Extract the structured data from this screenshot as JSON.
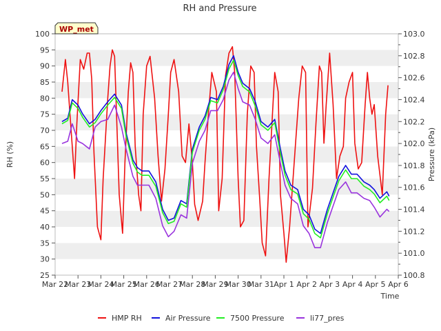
{
  "chart_data": {
    "type": "line",
    "title": "RH and Pressure",
    "site_badge": "WP_met",
    "xlabel": "Time",
    "ylabel_left": "RH (%)",
    "ylabel_right": "Pressure (kPa)",
    "x_ticks": [
      "Mar 22",
      "Mar 23",
      "Mar 24",
      "Mar 25",
      "Mar 26",
      "Mar 27",
      "Mar 28",
      "Mar 29",
      "Mar 30",
      "Mar 31",
      "Apr 1",
      "Apr 2",
      "Apr 3",
      "Apr 4",
      "Apr 5",
      "Apr 6"
    ],
    "x_range_days": [
      0,
      15
    ],
    "y_left_range": [
      25,
      100
    ],
    "y_left_ticks": [
      25,
      30,
      35,
      40,
      45,
      50,
      55,
      60,
      65,
      70,
      75,
      80,
      85,
      90,
      95,
      100
    ],
    "y_right_range": [
      100.8,
      103.0
    ],
    "y_right_ticks": [
      100.8,
      101.0,
      101.2,
      101.4,
      101.6,
      101.8,
      102.0,
      102.2,
      102.4,
      102.6,
      102.8,
      103.0
    ],
    "grid": "horizontal bands",
    "legend_position": "bottom",
    "series": [
      {
        "name": "HMP RH",
        "axis": "left",
        "color": "#ee1111",
        "x": [
          0.3,
          0.45,
          0.55,
          0.7,
          0.85,
          0.95,
          1.1,
          1.25,
          1.4,
          1.5,
          1.6,
          1.7,
          1.85,
          2.0,
          2.1,
          2.3,
          2.4,
          2.5,
          2.6,
          2.8,
          2.95,
          3.05,
          3.2,
          3.3,
          3.4,
          3.5,
          3.65,
          3.75,
          3.85,
          4.0,
          4.15,
          4.35,
          4.5,
          4.65,
          4.8,
          4.95,
          5.05,
          5.2,
          5.4,
          5.55,
          5.7,
          5.85,
          6.0,
          6.1,
          6.25,
          6.45,
          6.55,
          6.7,
          6.85,
          7.05,
          7.15,
          7.3,
          7.45,
          7.6,
          7.75,
          7.85,
          8.0,
          8.1,
          8.25,
          8.4,
          8.55,
          8.7,
          8.8,
          8.95,
          9.05,
          9.2,
          9.35,
          9.5,
          9.6,
          9.75,
          9.85,
          10.0,
          10.1,
          10.25,
          10.4,
          10.5,
          10.65,
          10.8,
          10.95,
          11.05,
          11.25,
          11.4,
          11.55,
          11.65,
          11.75,
          11.85,
          12.0,
          12.15,
          12.3,
          12.45,
          12.6,
          12.7,
          12.85,
          13.0,
          13.1,
          13.25,
          13.4,
          13.55,
          13.65,
          13.75,
          13.85,
          13.95,
          14.1,
          14.3,
          14.45,
          14.55
        ],
        "values": [
          82,
          92,
          85,
          70,
          55,
          72,
          92,
          89,
          94,
          94,
          86,
          63,
          40,
          36,
          55,
          80,
          90,
          95,
          93,
          50,
          38,
          60,
          82,
          91,
          88,
          65,
          50,
          45,
          75,
          90,
          93,
          80,
          62,
          48,
          58,
          75,
          88,
          92,
          82,
          62,
          60,
          72,
          60,
          47,
          42,
          48,
          60,
          75,
          88,
          82,
          45,
          55,
          87,
          94,
          96,
          88,
          55,
          40,
          42,
          75,
          90,
          88,
          65,
          48,
          35,
          31,
          55,
          75,
          88,
          82,
          50,
          38,
          29,
          40,
          55,
          65,
          80,
          90,
          88,
          40,
          52,
          72,
          90,
          88,
          66,
          78,
          94,
          78,
          55,
          62,
          65,
          80,
          85,
          88,
          66,
          58,
          60,
          78,
          88,
          80,
          75,
          78,
          62,
          50,
          75,
          84
        ]
      },
      {
        "name": "Air Pressure",
        "axis": "right",
        "color": "#1111dd",
        "x": [
          0.3,
          0.55,
          0.75,
          1.0,
          1.2,
          1.5,
          1.75,
          2.0,
          2.3,
          2.6,
          2.9,
          3.1,
          3.4,
          3.6,
          3.8,
          4.1,
          4.4,
          4.7,
          4.95,
          5.2,
          5.5,
          5.75,
          6.0,
          6.3,
          6.55,
          6.8,
          7.1,
          7.35,
          7.6,
          7.8,
          8.0,
          8.2,
          8.5,
          8.75,
          9.0,
          9.3,
          9.6,
          9.85,
          10.05,
          10.3,
          10.6,
          10.85,
          11.1,
          11.35,
          11.6,
          11.9,
          12.1,
          12.4,
          12.7,
          12.95,
          13.2,
          13.5,
          13.75,
          13.95,
          14.2,
          14.5,
          14.6
        ],
        "values": [
          102.2,
          102.23,
          102.4,
          102.35,
          102.27,
          102.18,
          102.22,
          102.3,
          102.38,
          102.45,
          102.35,
          102.1,
          101.85,
          101.78,
          101.75,
          101.75,
          101.65,
          101.4,
          101.3,
          101.32,
          101.48,
          101.45,
          101.95,
          102.15,
          102.25,
          102.42,
          102.4,
          102.52,
          102.72,
          102.8,
          102.65,
          102.55,
          102.5,
          102.38,
          102.2,
          102.15,
          102.22,
          101.95,
          101.75,
          101.62,
          101.58,
          101.4,
          101.35,
          101.22,
          101.18,
          101.4,
          101.52,
          101.7,
          101.8,
          101.72,
          101.72,
          101.65,
          101.62,
          101.58,
          101.5,
          101.56,
          101.52
        ]
      },
      {
        "name": "7500 Pressure",
        "axis": "right",
        "color": "#22ee22",
        "x": [
          0.3,
          0.55,
          0.75,
          1.0,
          1.2,
          1.5,
          1.75,
          2.0,
          2.3,
          2.6,
          2.9,
          3.1,
          3.4,
          3.6,
          3.8,
          4.1,
          4.4,
          4.7,
          4.95,
          5.2,
          5.5,
          5.75,
          6.0,
          6.3,
          6.55,
          6.8,
          7.1,
          7.35,
          7.6,
          7.8,
          8.0,
          8.2,
          8.5,
          8.75,
          9.0,
          9.3,
          9.6,
          9.85,
          10.05,
          10.3,
          10.6,
          10.85,
          11.1,
          11.35,
          11.6,
          11.9,
          12.1,
          12.4,
          12.7,
          12.95,
          13.2,
          13.5,
          13.75,
          13.95,
          14.2,
          14.5,
          14.6
        ],
        "values": [
          102.18,
          102.21,
          102.37,
          102.32,
          102.24,
          102.15,
          102.19,
          102.27,
          102.35,
          102.42,
          102.32,
          102.07,
          101.82,
          101.74,
          101.71,
          101.71,
          101.61,
          101.37,
          101.27,
          101.29,
          101.45,
          101.42,
          101.92,
          102.12,
          102.22,
          102.39,
          102.37,
          102.49,
          102.68,
          102.76,
          102.62,
          102.52,
          102.47,
          102.34,
          102.17,
          102.12,
          102.19,
          101.91,
          101.71,
          101.58,
          101.54,
          101.36,
          101.31,
          101.18,
          101.14,
          101.36,
          101.48,
          101.66,
          101.76,
          101.68,
          101.68,
          101.61,
          101.58,
          101.54,
          101.46,
          101.52,
          101.48
        ]
      },
      {
        "name": "li77_pres",
        "axis": "right",
        "color": "#9933dd",
        "x": [
          0.3,
          0.55,
          0.75,
          1.0,
          1.2,
          1.5,
          1.75,
          2.0,
          2.3,
          2.6,
          2.9,
          3.1,
          3.4,
          3.6,
          3.8,
          4.1,
          4.4,
          4.7,
          4.95,
          5.2,
          5.5,
          5.75,
          6.0,
          6.3,
          6.55,
          6.8,
          7.1,
          7.35,
          7.6,
          7.8,
          8.0,
          8.2,
          8.5,
          8.75,
          9.0,
          9.3,
          9.6,
          9.85,
          10.05,
          10.3,
          10.6,
          10.85,
          11.1,
          11.35,
          11.6,
          11.9,
          12.1,
          12.4,
          12.7,
          12.95,
          13.2,
          13.5,
          13.75,
          13.95,
          14.2,
          14.5,
          14.6
        ],
        "values": [
          102.0,
          102.02,
          102.18,
          102.02,
          102.0,
          101.95,
          102.15,
          102.2,
          102.22,
          102.35,
          102.15,
          101.95,
          101.7,
          101.62,
          101.62,
          101.62,
          101.5,
          101.25,
          101.15,
          101.2,
          101.35,
          101.32,
          101.82,
          102.02,
          102.12,
          102.3,
          102.3,
          102.4,
          102.58,
          102.65,
          102.5,
          102.38,
          102.35,
          102.22,
          102.05,
          102.0,
          102.08,
          101.82,
          101.62,
          101.5,
          101.45,
          101.25,
          101.18,
          101.05,
          101.05,
          101.28,
          101.4,
          101.58,
          101.65,
          101.55,
          101.55,
          101.5,
          101.48,
          101.42,
          101.33,
          101.4,
          101.38
        ]
      }
    ]
  }
}
